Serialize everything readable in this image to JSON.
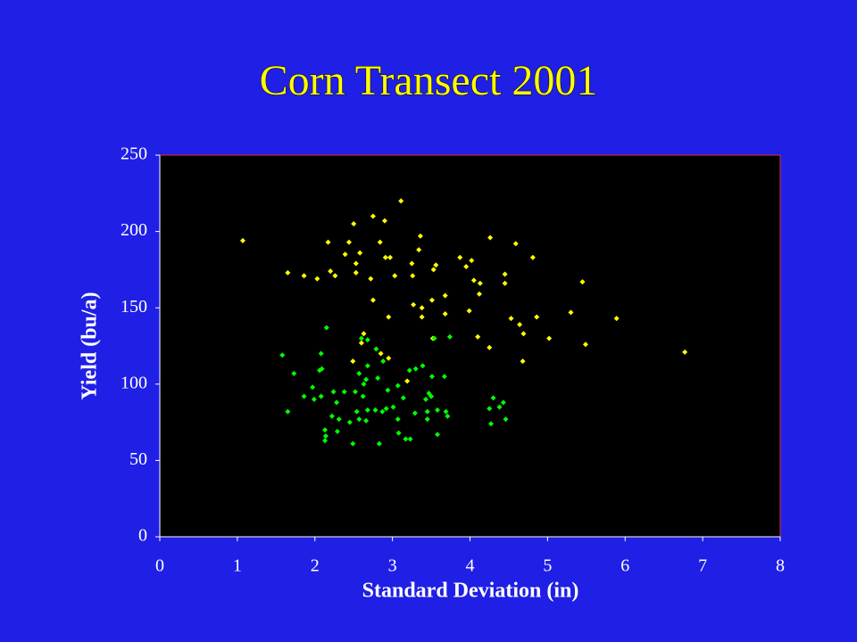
{
  "chart_data": {
    "type": "scatter",
    "title": "Corn Transect 2001",
    "x_label": "Standard Deviation (in)",
    "y_label": "Yield (bu/a)",
    "xlim": [
      0,
      8
    ],
    "xticks": [
      0,
      1,
      2,
      3,
      4,
      5,
      6,
      7,
      8
    ],
    "ylim": [
      0,
      250
    ],
    "yticks": [
      0,
      50,
      100,
      150,
      200,
      250
    ],
    "series": [
      {
        "color": "#ffff00",
        "x": [
          1.07,
          1.65,
          1.86,
          2.03,
          2.17,
          2.2,
          2.26,
          2.39,
          2.44,
          2.5,
          2.53,
          2.53,
          2.58,
          2.72,
          2.75,
          2.84,
          2.9,
          2.91,
          2.97,
          3.03,
          3.11,
          3.25,
          3.26,
          3.34,
          3.36,
          3.27,
          3.38,
          3.38,
          3.53,
          3.56,
          3.51,
          3.68,
          3.68,
          3.87,
          3.95,
          4.02,
          4.05,
          4.13,
          4.12,
          3.99,
          2.95,
          2.75,
          4.26,
          4.45,
          4.45,
          4.59,
          4.53,
          4.64,
          4.69,
          4.81,
          4.86,
          5.02,
          5.3,
          5.45,
          5.49,
          5.89,
          6.77,
          4.25,
          4.1,
          4.68,
          3.52,
          3.19,
          2.95,
          2.85,
          2.49,
          2.6,
          2.63
        ],
        "values": [
          194,
          173,
          171,
          169,
          193,
          174,
          171,
          185,
          193,
          205,
          179,
          173,
          186,
          169,
          210,
          193,
          207,
          183,
          183,
          171,
          220,
          179,
          171,
          188,
          197,
          152,
          150,
          144,
          175,
          178,
          155,
          158,
          146,
          183,
          177,
          181,
          168,
          166,
          159,
          148,
          144,
          155,
          196,
          172,
          166,
          192,
          143,
          139,
          133,
          183,
          144,
          130,
          147,
          167,
          126,
          143,
          121,
          124,
          131,
          115,
          130,
          102,
          117,
          120,
          115,
          127,
          133
        ]
      },
      {
        "color": "#00ff00",
        "x": [
          1.58,
          1.65,
          1.73,
          1.86,
          1.97,
          1.99,
          2.06,
          2.09,
          2.08,
          2.08,
          2.15,
          2.13,
          2.14,
          2.13,
          2.22,
          2.24,
          2.28,
          2.29,
          2.31,
          2.38,
          2.45,
          2.49,
          2.52,
          2.54,
          2.57,
          2.57,
          2.6,
          2.62,
          2.63,
          2.66,
          2.66,
          2.68,
          2.68,
          2.68,
          2.78,
          2.79,
          2.81,
          2.83,
          2.87,
          2.88,
          2.92,
          2.94,
          3.01,
          3.07,
          3.07,
          3.08,
          3.14,
          3.17,
          3.22,
          3.23,
          3.29,
          3.3,
          3.39,
          3.43,
          3.45,
          3.45,
          3.47,
          3.5,
          3.51,
          3.54,
          3.58,
          3.58,
          3.67,
          3.69,
          3.71,
          3.74,
          4.25,
          4.27,
          4.3,
          4.38,
          4.43,
          4.46
        ],
        "values": [
          119,
          82,
          107,
          92,
          98,
          90,
          109,
          110,
          120,
          92,
          137,
          70,
          66,
          63,
          79,
          95,
          88,
          69,
          77,
          95,
          75,
          61,
          95,
          82,
          77,
          107,
          130,
          92,
          100,
          103,
          76,
          112,
          83,
          129,
          83,
          123,
          104,
          61,
          82,
          115,
          84,
          96,
          85,
          99,
          77,
          68,
          91,
          64,
          109,
          64,
          81,
          110,
          112,
          90,
          82,
          77,
          94,
          92,
          105,
          130,
          83,
          67,
          105,
          82,
          79,
          131,
          84,
          74,
          91,
          85,
          88,
          77
        ]
      }
    ]
  }
}
